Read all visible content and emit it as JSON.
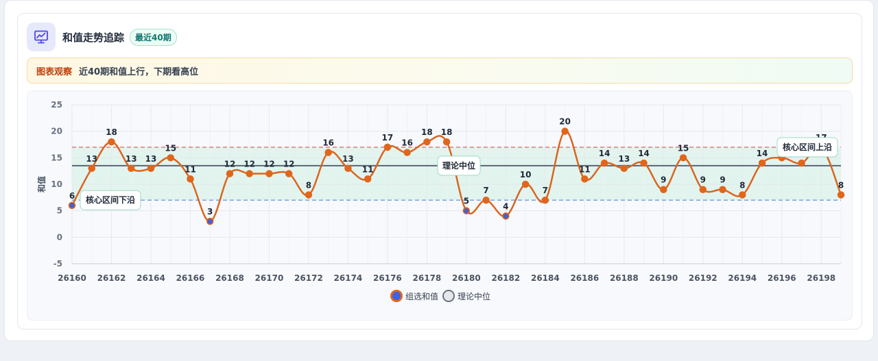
{
  "header": {
    "title": "和值走势追踪",
    "badge": "最近40期",
    "icon": "chart-line-icon"
  },
  "insight": {
    "label": "图表观察",
    "text": "近40期和值上行，下期看高位"
  },
  "chart_data": {
    "type": "line",
    "title": "",
    "xlabel": "",
    "ylabel": "和值",
    "ylim": [
      -5,
      25
    ],
    "yticks": [
      -5,
      0,
      5,
      10,
      15,
      20,
      25
    ],
    "x": [
      26160,
      26161,
      26162,
      26163,
      26164,
      26165,
      26166,
      26167,
      26168,
      26169,
      26170,
      26171,
      26172,
      26173,
      26174,
      26175,
      26176,
      26177,
      26178,
      26179,
      26180,
      26181,
      26182,
      26183,
      26184,
      26185,
      26186,
      26187,
      26188,
      26189,
      26190,
      26191,
      26192,
      26193,
      26194,
      26195,
      26196,
      26197,
      26198,
      26199
    ],
    "xticks": [
      "26160",
      "26162",
      "26164",
      "26166",
      "26168",
      "26170",
      "26172",
      "26174",
      "26176",
      "26178",
      "26180",
      "26182",
      "26184",
      "26186",
      "26188",
      "26190",
      "26192",
      "26194",
      "26196",
      "26198"
    ],
    "series": [
      {
        "name": "组选和值",
        "values": [
          6,
          13,
          18,
          13,
          13,
          15,
          11,
          3,
          12,
          12,
          12,
          12,
          8,
          16,
          13,
          11,
          17,
          16,
          18,
          18,
          5,
          7,
          4,
          10,
          7,
          20,
          11,
          14,
          13,
          14,
          9,
          15,
          9,
          9,
          8,
          14,
          15,
          14,
          17,
          8
        ],
        "color": "#d9651f",
        "marker_color": "#e0661c",
        "low_marker_color": "#4a60c9"
      }
    ],
    "reference_lines": [
      {
        "name": "理论中位",
        "value": 13.5,
        "color": "#5b6475",
        "style": "solid"
      },
      {
        "name": "核心区间上沿",
        "value": 17,
        "color": "#e07a7a",
        "style": "dashed"
      },
      {
        "name": "核心区间下沿",
        "value": 7,
        "color": "#6f9bd8",
        "style": "dashed"
      }
    ],
    "band": {
      "from": 7,
      "to": 17,
      "color": "#d1f0e2"
    },
    "legend": {
      "position": "bottom",
      "items": [
        {
          "name": "组选和值",
          "fill": "#3b62e8",
          "stroke": "#e0661c"
        },
        {
          "name": "理论中位",
          "fill": "#e5e7eb",
          "stroke": "#6b7280"
        }
      ]
    },
    "grid": true
  }
}
